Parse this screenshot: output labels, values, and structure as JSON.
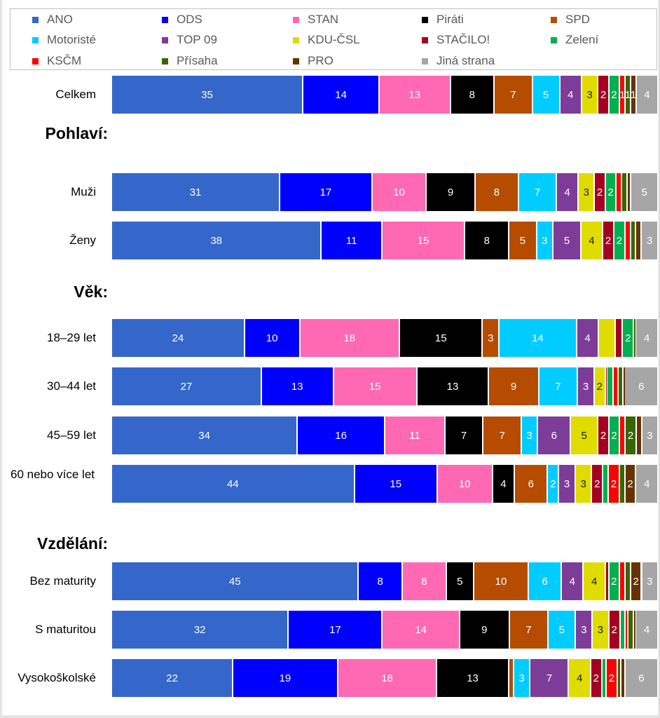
{
  "chart_data": {
    "type": "bar",
    "orientation": "horizontal",
    "stacked": true,
    "percent_scale": true,
    "xlim": [
      0,
      100
    ],
    "grid": false,
    "legend": {
      "position": "top"
    },
    "series": [
      {
        "key": "ano",
        "name": "ANO",
        "color": "#3467C9",
        "label_color": "#ffffff"
      },
      {
        "key": "ods",
        "name": "ODS",
        "color": "#0000FF",
        "label_color": "#ffffff"
      },
      {
        "key": "stan",
        "name": "STAN",
        "color": "#FF69B4",
        "label_color": "#ffffff"
      },
      {
        "key": "pirati",
        "name": "Piráti",
        "color": "#000000",
        "label_color": "#ffffff"
      },
      {
        "key": "spd",
        "name": "SPD",
        "color": "#B54C00",
        "label_color": "#ffffff"
      },
      {
        "key": "motoriste",
        "name": "Motoristé",
        "color": "#00CCFF",
        "label_color": "#ffffff"
      },
      {
        "key": "top09",
        "name": "TOP 09",
        "color": "#7D3C98",
        "label_color": "#ffffff"
      },
      {
        "key": "kducsl",
        "name": "KDU-ČSL",
        "color": "#E0DC00",
        "label_color": "#1a1a1a"
      },
      {
        "key": "stacilo",
        "name": "STAČILO!",
        "color": "#A50021",
        "label_color": "#ffffff"
      },
      {
        "key": "zeleni",
        "name": "Zelení",
        "color": "#00B050",
        "label_color": "#ffffff"
      },
      {
        "key": "kscm",
        "name": "KSČM",
        "color": "#FF0000",
        "label_color": "#ffffff"
      },
      {
        "key": "prisaha",
        "name": "Přísaha",
        "color": "#386600",
        "label_color": "#ffffff"
      },
      {
        "key": "pro",
        "name": "PRO",
        "color": "#663300",
        "label_color": "#ffffff"
      },
      {
        "key": "jina",
        "name": "Jiná strana",
        "color": "#A6A6A6",
        "label_color": "#ffffff"
      }
    ],
    "groups": [
      {
        "heading": "",
        "rows": [
          {
            "label": "Celkem",
            "values": [
              35,
              14,
              13,
              8,
              7,
              5,
              4,
              3,
              2,
              2,
              1,
              1,
              1,
              4
            ],
            "labels": [
              "35",
              "14",
              "13",
              "8",
              "7",
              "5",
              "4",
              "3",
              "2",
              "2",
              "1",
              "1",
              "1",
              "4"
            ]
          }
        ]
      },
      {
        "heading": "Pohlaví:",
        "rows": [
          {
            "label": "Muži",
            "values": [
              31,
              17,
              10,
              9,
              8,
              7,
              4,
              3,
              2,
              2,
              1,
              1,
              0.7,
              5
            ],
            "labels": [
              "31",
              "17",
              "10",
              "9",
              "8",
              "7",
              "4",
              "3",
              "2",
              "2",
              "",
              "",
              "",
              "5"
            ]
          },
          {
            "label": "Ženy",
            "values": [
              38,
              11,
              15,
              8,
              5,
              3,
              5,
              4,
              2,
              2,
              1,
              1,
              1,
              3
            ],
            "labels": [
              "38",
              "11",
              "15",
              "8",
              "5",
              "3",
              "5",
              "4",
              "2",
              "2",
              "",
              "",
              "",
              "3"
            ]
          }
        ]
      },
      {
        "heading": "Věk:",
        "rows": [
          {
            "label": "18–29 let",
            "values": [
              24,
              10,
              18,
              15,
              3,
              14,
              4,
              3,
              1.3,
              2,
              0,
              0.4,
              0,
              4
            ],
            "labels": [
              "24",
              "10",
              "18",
              "15",
              "3",
              "14",
              "4",
              "",
              "",
              "2",
              "",
              "",
              "",
              "4"
            ]
          },
          {
            "label": "30–44 let",
            "values": [
              27,
              13,
              15,
              13,
              9,
              7,
              3,
              2,
              0.3,
              1.1,
              0.9,
              0.9,
              0.3,
              6
            ],
            "labels": [
              "27",
              "13",
              "15",
              "13",
              "9",
              "7",
              "3",
              "2",
              "",
              "",
              "",
              "",
              "",
              "6"
            ]
          },
          {
            "label": "45–59 let",
            "values": [
              34,
              16,
              11,
              7,
              7,
              3,
              6,
              5,
              2,
              2,
              1,
              2,
              1,
              3
            ],
            "labels": [
              "34",
              "16",
              "11",
              "7",
              "7",
              "3",
              "6",
              "5",
              "2",
              "2",
              "",
              "2",
              "",
              "3"
            ]
          },
          {
            "label": "60 nebo více let",
            "values": [
              44,
              15,
              10,
              4,
              6,
              2,
              3,
              3,
              2,
              1,
              2,
              1,
              2,
              4
            ],
            "labels": [
              "44",
              "15",
              "10",
              "4",
              "6",
              "2",
              "3",
              "3",
              "2",
              "",
              "2",
              "",
              "2",
              "4"
            ]
          }
        ]
      },
      {
        "heading": "Vzdělání:",
        "rows": [
          {
            "label": "Bez maturity",
            "values": [
              45,
              8,
              8,
              5,
              10,
              6,
              4,
              4,
              0.6,
              2,
              1,
              1,
              2,
              3
            ],
            "labels": [
              "45",
              "8",
              "8",
              "5",
              "10",
              "6",
              "4",
              "4",
              "",
              "2",
              "",
              "",
              "2",
              "3"
            ]
          },
          {
            "label": "S maturitou",
            "values": [
              32,
              17,
              14,
              9,
              7,
              5,
              3,
              3,
              2,
              1,
              0.5,
              1,
              0.4,
              4
            ],
            "labels": [
              "32",
              "17",
              "14",
              "9",
              "7",
              "5",
              "3",
              "3",
              "2",
              "",
              "",
              "",
              "",
              "4"
            ]
          },
          {
            "label": "Vysokoškolské",
            "values": [
              22,
              19,
              18,
              13,
              0.9,
              3,
              7,
              4,
              2,
              0.8,
              2,
              0.7,
              0.7,
              6
            ],
            "labels": [
              "22",
              "19",
              "18",
              "13",
              "",
              "3",
              "7",
              "4",
              "2",
              "",
              "2",
              "",
              "",
              "6"
            ]
          }
        ]
      }
    ]
  }
}
